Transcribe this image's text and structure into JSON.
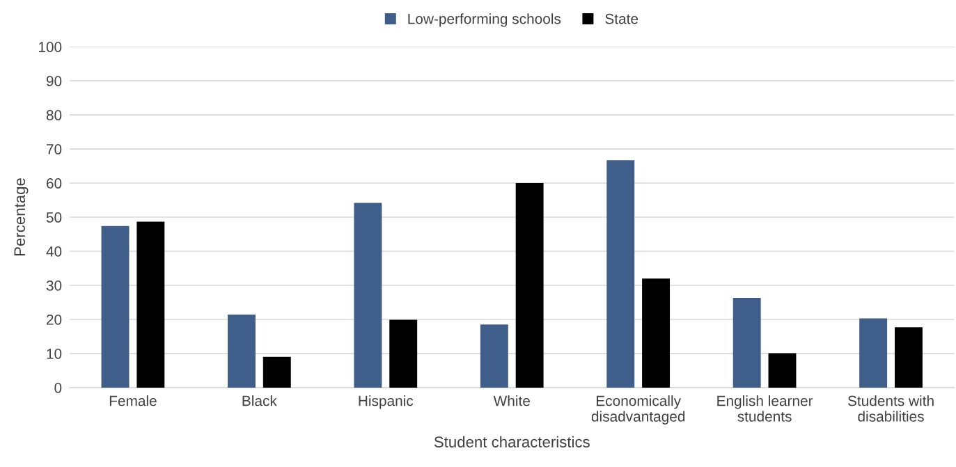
{
  "chart_data": {
    "type": "bar",
    "xlabel": "Student characteristics",
    "ylabel": "Percentage",
    "categories": [
      "Female",
      "Black",
      "Hispanic",
      "White",
      "Economically\ndisadvantaged",
      "English learner\nstudents",
      "Students with\ndisabilities"
    ],
    "series": [
      {
        "name": "Low-performing schools",
        "color": "#3f5e89",
        "values": [
          47.4,
          21.4,
          54.2,
          18.5,
          66.7,
          26.3,
          20.3
        ]
      },
      {
        "name": "State",
        "color": "#000000",
        "values": [
          48.7,
          9.0,
          19.9,
          60.0,
          32.0,
          10.1,
          17.7
        ]
      }
    ],
    "ylim": [
      0,
      100
    ],
    "yticks": [
      0,
      10,
      20,
      30,
      40,
      50,
      60,
      70,
      80,
      90,
      100
    ],
    "grid": "y",
    "legend": "top"
  }
}
